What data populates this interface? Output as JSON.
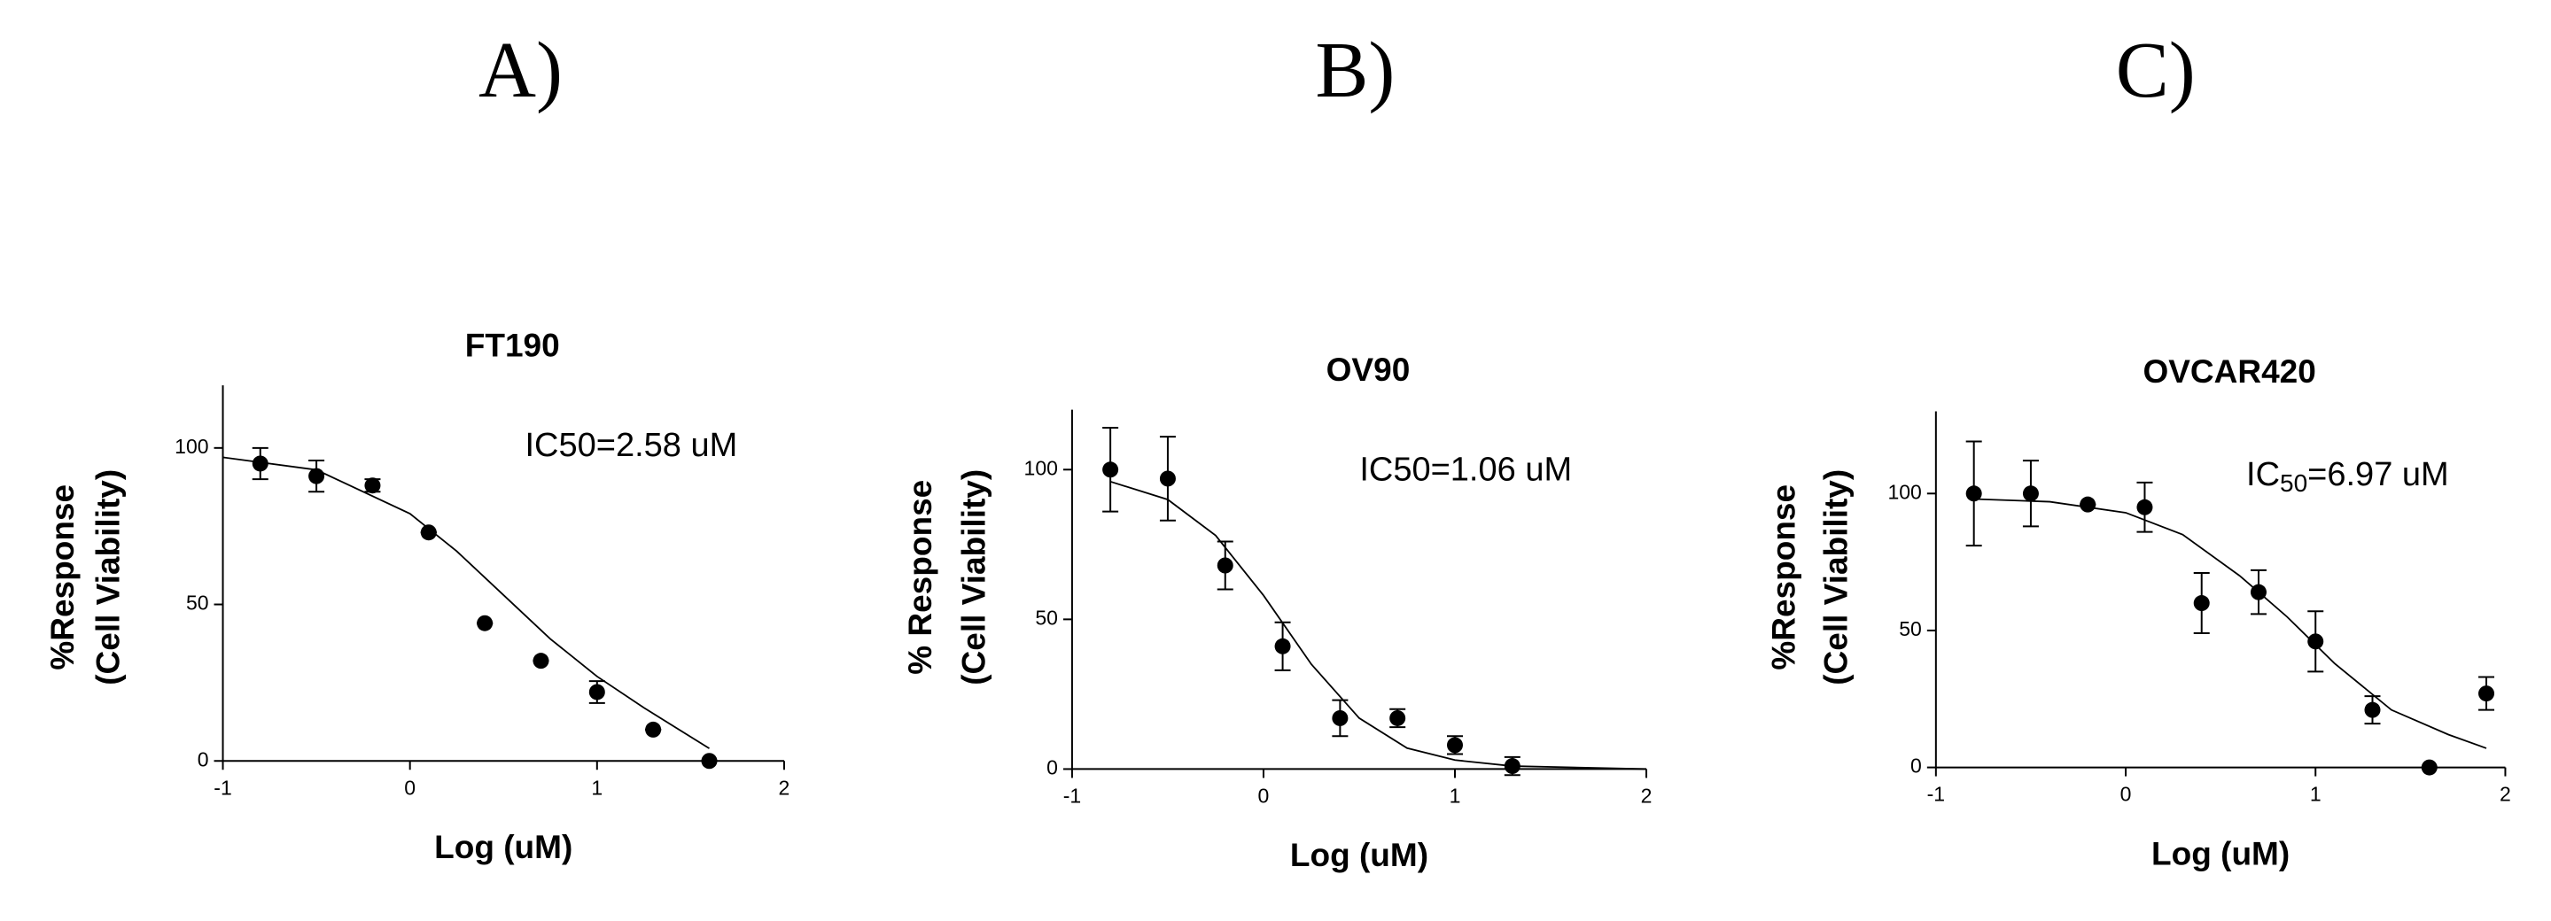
{
  "chart_data": [
    {
      "type": "scatter",
      "panel": "A)",
      "title": "FT190",
      "ylabel": [
        "%Response",
        "(Cell Viability)"
      ],
      "xlabel": "Log (uM)",
      "annotation": "IC50=2.58 uM",
      "x": [
        -0.8,
        -0.5,
        -0.2,
        0.1,
        0.4,
        0.7,
        1.0,
        1.3,
        1.6
      ],
      "values": [
        95,
        91,
        88,
        73,
        44,
        32,
        22,
        10,
        0
      ],
      "errors": [
        5,
        5,
        2,
        0,
        0,
        0,
        3.5,
        0,
        0
      ],
      "fit": {
        "x": [
          -1,
          -0.5,
          0,
          0.25,
          0.5,
          0.75,
          1,
          1.25,
          1.6
        ],
        "values": [
          97,
          93,
          79,
          67,
          53,
          39,
          27,
          17,
          4
        ]
      },
      "color": "#000000",
      "xlim": [
        -1,
        2
      ],
      "ylim": [
        0,
        120
      ],
      "xticks": [
        -1,
        0,
        1,
        2
      ],
      "yticks": [
        0,
        50,
        100
      ]
    },
    {
      "type": "scatter",
      "panel": "B)",
      "title": "OV90",
      "ylabel": [
        "% Response",
        "(Cell Viability)"
      ],
      "xlabel": "Log (uM)",
      "annotation": "IC50=1.06 uM",
      "x": [
        -0.8,
        -0.5,
        -0.2,
        0.1,
        0.4,
        0.7,
        1.0,
        1.3
      ],
      "values": [
        100,
        97,
        68,
        41,
        17,
        17,
        8,
        1
      ],
      "errors": [
        14,
        14,
        8,
        8,
        6,
        3,
        3,
        3
      ],
      "fit": {
        "x": [
          -0.8,
          -0.5,
          -0.25,
          0,
          0.25,
          0.5,
          0.75,
          1,
          1.3,
          2
        ],
        "values": [
          96,
          90,
          78,
          58,
          35,
          17,
          7,
          3,
          1,
          0
        ]
      },
      "color": "#000000",
      "xlim": [
        -1,
        2
      ],
      "ylim": [
        0,
        120
      ],
      "xticks": [
        -1,
        0,
        1,
        2
      ],
      "yticks": [
        0,
        50,
        100
      ]
    },
    {
      "type": "scatter",
      "panel": "C)",
      "title": "OVCAR420",
      "ylabel": [
        "%Response",
        "(Cell Viability)"
      ],
      "xlabel": "Log (uM)",
      "annotation": {
        "base": "IC",
        "sub": "50",
        "rest": "=6.97 uM"
      },
      "x": [
        -0.8,
        -0.5,
        -0.2,
        0.1,
        0.4,
        0.7,
        1.0,
        1.3,
        1.6,
        1.9
      ],
      "values": [
        100,
        100,
        96,
        95,
        60,
        64,
        46,
        21,
        0,
        27
      ],
      "errors": [
        19,
        12,
        0,
        9,
        11,
        8,
        11,
        5,
        0,
        6
      ],
      "fit": {
        "x": [
          -0.8,
          -0.4,
          0,
          0.3,
          0.6,
          0.85,
          1.1,
          1.4,
          1.7,
          1.9
        ],
        "values": [
          98,
          97,
          93,
          85,
          70,
          55,
          38,
          21,
          12,
          7
        ]
      },
      "color": "#000000",
      "xlim": [
        -1,
        2
      ],
      "ylim": [
        0,
        130
      ],
      "xticks": [
        -1,
        0,
        1,
        2
      ],
      "yticks": [
        0,
        50,
        100
      ]
    }
  ]
}
